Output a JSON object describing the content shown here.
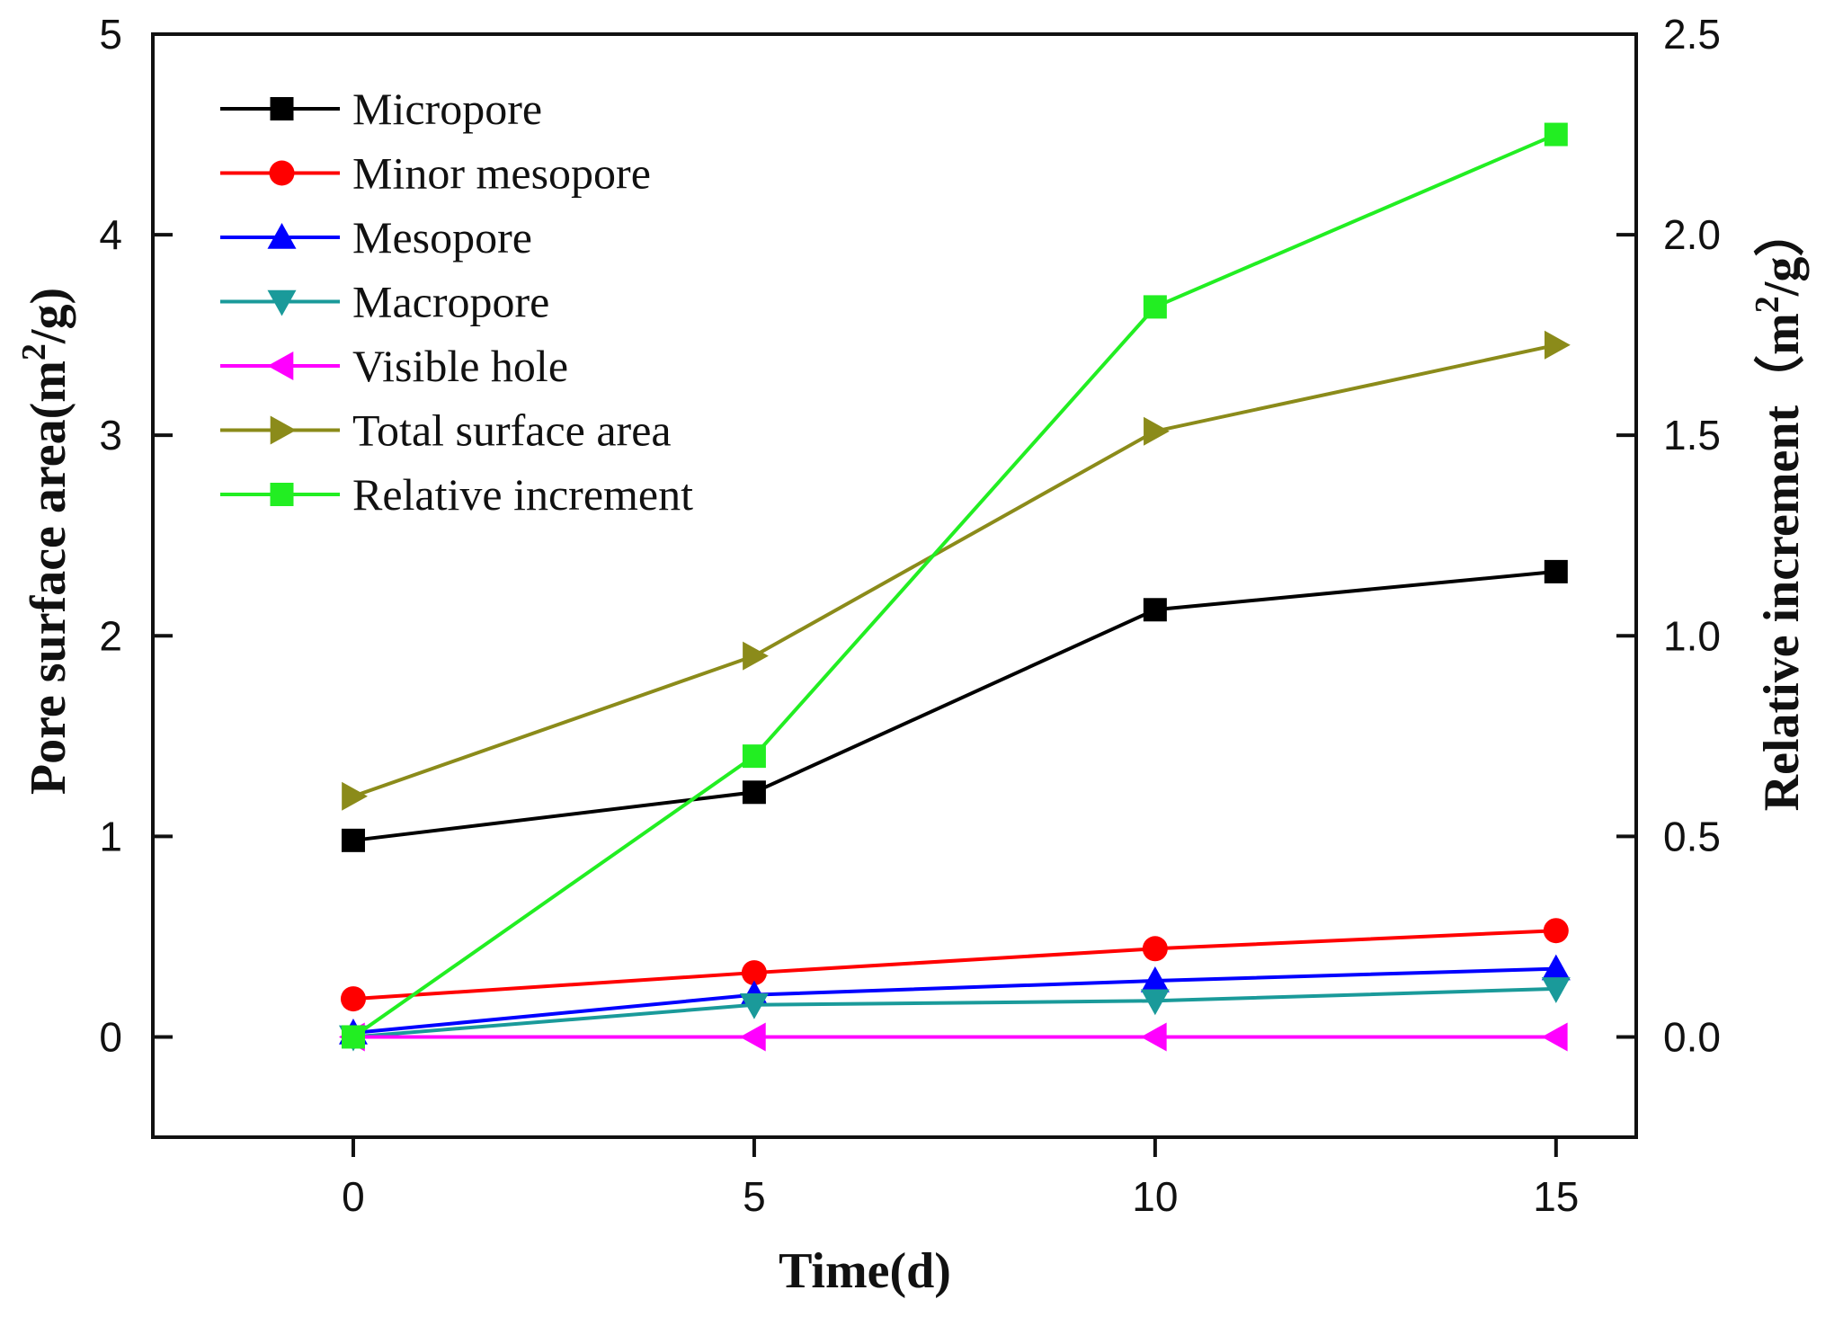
{
  "chart_data": {
    "type": "line",
    "title": "",
    "xlabel": "Time(d)",
    "ylabel_left": {
      "text": "Pore surface area",
      "unit_prefix": "(m",
      "unit_sup": "2",
      "unit_suffix": "/g)"
    },
    "ylabel_right": {
      "text": "Relative increment",
      "unit_prefix": "（m",
      "unit_sup": "2",
      "unit_suffix": "/g）"
    },
    "x": [
      0,
      5,
      10,
      15
    ],
    "xlim": [
      -2.5,
      16
    ],
    "ylim_left": [
      -0.5,
      5
    ],
    "ylim_right": [
      -0.25,
      2.5
    ],
    "x_ticks": [
      0,
      5,
      10,
      15
    ],
    "x_tick_labels": [
      "0",
      "5",
      "10",
      "15"
    ],
    "y_left_ticks": [
      0,
      1,
      2,
      3,
      4,
      5
    ],
    "y_left_tick_labels": [
      "0",
      "1",
      "2",
      "3",
      "4",
      "5"
    ],
    "y_right_ticks": [
      0,
      0.5,
      1,
      1.5,
      2,
      2.5
    ],
    "y_right_tick_labels": [
      "0.0",
      "0.5",
      "1.0",
      "1.5",
      "2.0",
      "2.5"
    ],
    "grid": false,
    "legend_position": "top-left",
    "series": [
      {
        "name": "Micropore",
        "axis": "left",
        "marker": "square",
        "color": "#000000",
        "values": [
          0.98,
          1.22,
          2.13,
          2.32
        ]
      },
      {
        "name": "Minor mesopore",
        "axis": "left",
        "marker": "circle",
        "color": "#ff0000",
        "values": [
          0.19,
          0.32,
          0.44,
          0.53
        ]
      },
      {
        "name": "Mesopore",
        "axis": "left",
        "marker": "triangle-up",
        "color": "#0000ff",
        "values": [
          0.02,
          0.21,
          0.28,
          0.34
        ]
      },
      {
        "name": "Macropore",
        "axis": "left",
        "marker": "triangle-down",
        "color": "#1a9a9a",
        "values": [
          0.0,
          0.16,
          0.18,
          0.24
        ]
      },
      {
        "name": "Visible hole",
        "axis": "left",
        "marker": "triangle-left",
        "color": "#ff00ff",
        "values": [
          0.0,
          0.0,
          0.0,
          0.0
        ]
      },
      {
        "name": "Total surface area",
        "axis": "left",
        "marker": "triangle-right",
        "color": "#8b8b1a",
        "values": [
          1.2,
          1.9,
          3.02,
          3.45
        ]
      },
      {
        "name": "Relative increment",
        "axis": "right",
        "marker": "square",
        "color": "#22ee22",
        "values": [
          0.0,
          0.7,
          1.82,
          2.25
        ]
      }
    ]
  }
}
